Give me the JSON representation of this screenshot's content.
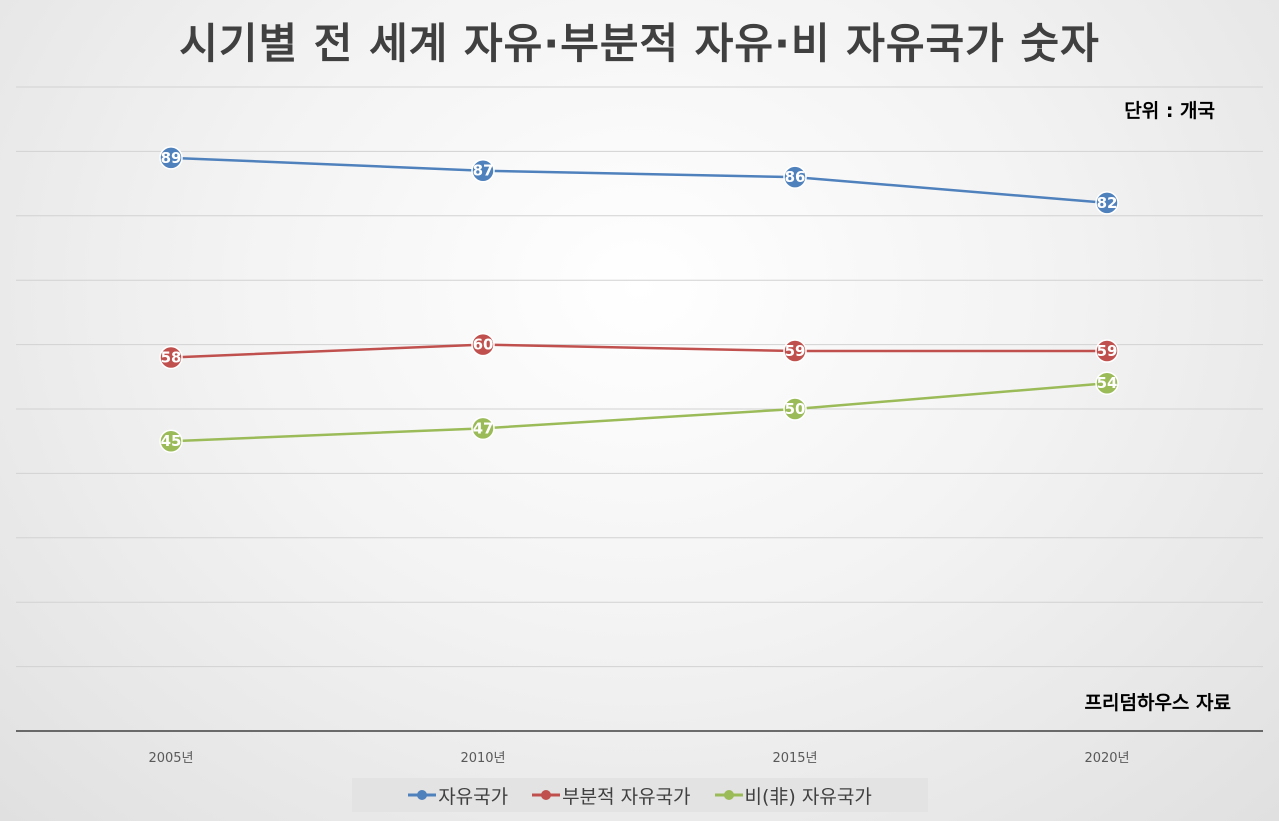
{
  "chart_data": {
    "type": "line",
    "title": "시기별 전 세계 자유·부분적 자유·비 자유국가 숫자",
    "unit_note": "단위 : 개국",
    "source_note": "프리덤하우스 자료",
    "categories": [
      "2005년",
      "2010년",
      "2015년",
      "2020년"
    ],
    "series": [
      {
        "name": "자유국가",
        "color": "#4f81bd",
        "values": [
          89,
          87,
          86,
          82
        ]
      },
      {
        "name": "부분적 자유국가",
        "color": "#c0504d",
        "values": [
          58,
          60,
          59,
          59
        ]
      },
      {
        "name": "비(非) 자유국가",
        "color": "#9bbb59",
        "values": [
          45,
          47,
          50,
          54
        ]
      }
    ],
    "ylim": [
      0,
      100
    ],
    "grid": true,
    "legend_position": "bottom"
  }
}
